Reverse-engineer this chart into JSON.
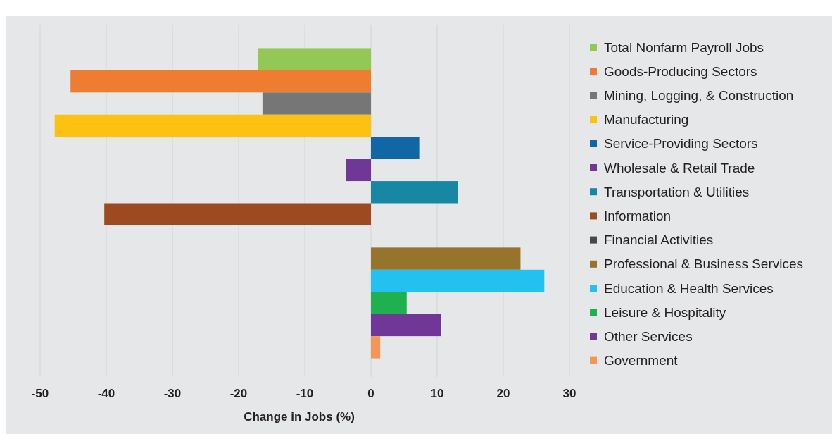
{
  "chart_data": {
    "type": "bar",
    "orientation": "horizontal",
    "xlabel": "Change in Jobs (%)",
    "categories": [
      null
    ],
    "series": [
      {
        "name": "Total Nonfarm Payroll Jobs",
        "color": "#92c853",
        "values": [
          -17.1
        ]
      },
      {
        "name": "Goods-Producing Sectors",
        "color": "#ee7d31",
        "values": [
          -45.4
        ]
      },
      {
        "name": "Mining, Logging, & Construction",
        "color": "#767677",
        "values": [
          -16.4
        ]
      },
      {
        "name": "Manufacturing",
        "color": "#fcc111",
        "values": [
          -47.8
        ]
      },
      {
        "name": "Service-Providing Sectors",
        "color": "#1167a5",
        "values": [
          7.3
        ]
      },
      {
        "name": "Wholesale & Retail Trade",
        "color": "#703797",
        "values": [
          -3.8
        ]
      },
      {
        "name": "Transportation & Utilities",
        "color": "#1887a3",
        "values": [
          13.1
        ]
      },
      {
        "name": "Information",
        "color": "#9d4a21",
        "values": [
          -40.3
        ]
      },
      {
        "name": "Financial Activities",
        "color": "#47484a",
        "values": [
          0
        ]
      },
      {
        "name": "Professional & Business Services",
        "color": "#97742c",
        "values": [
          22.6
        ]
      },
      {
        "name": "Education & Health Services",
        "color": "#23c1f0",
        "values": [
          26.2
        ]
      },
      {
        "name": "Leisure & Hospitality",
        "color": "#1fb14f",
        "values": [
          5.4
        ]
      },
      {
        "name": "Other Services",
        "color": "#703797",
        "values": [
          10.6
        ]
      },
      {
        "name": "Government",
        "color": "#f39658",
        "values": [
          1.4
        ]
      }
    ],
    "xlim": [
      -50,
      30
    ],
    "xticks": [
      -50,
      -40,
      -30,
      -20,
      -10,
      0,
      10,
      20,
      30
    ],
    "grid": "x",
    "legend": "right"
  }
}
